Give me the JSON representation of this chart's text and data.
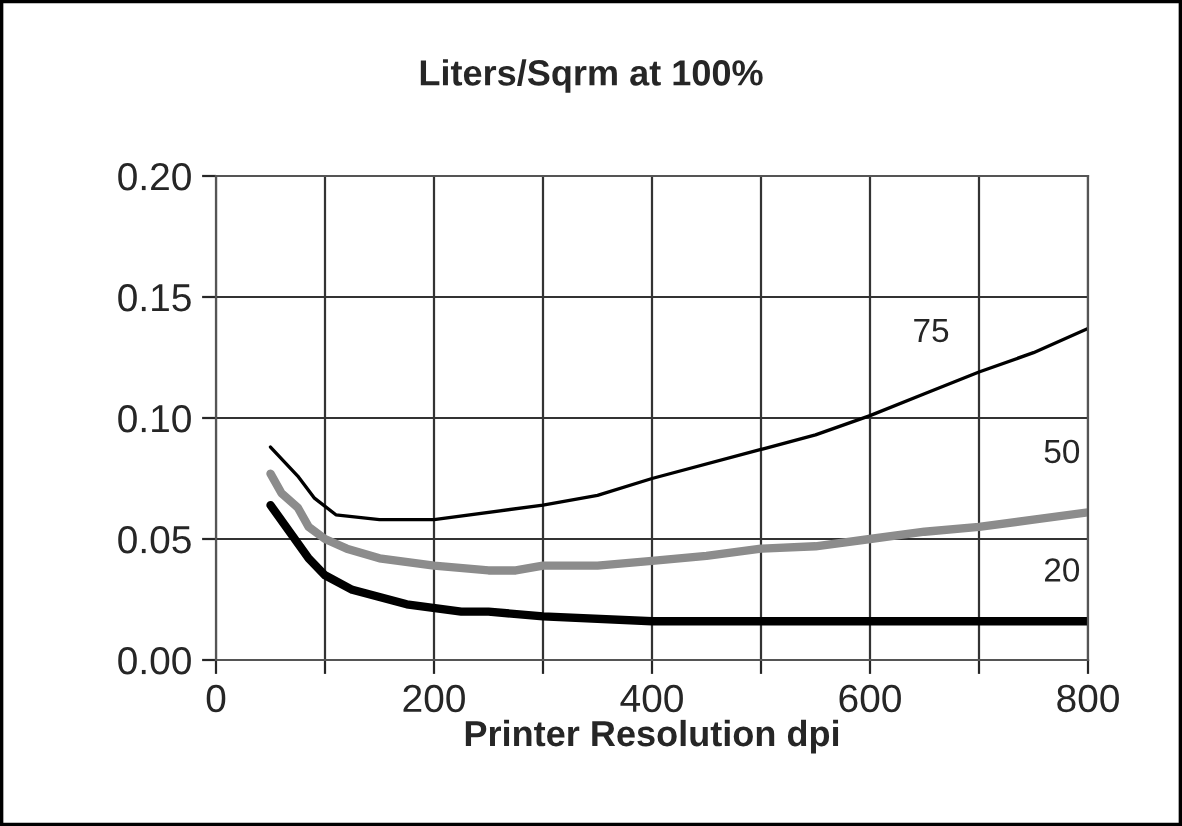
{
  "chart_data": {
    "type": "line",
    "title": "Liters/Sqrm at 100%",
    "xlabel": "Printer Resolution dpi",
    "xlim": [
      0,
      800
    ],
    "xticks": [
      0,
      {
        "value": 100,
        "label": null
      },
      200,
      {
        "value": 300,
        "label": null
      },
      400,
      {
        "value": 500,
        "label": null
      },
      600,
      {
        "value": 700,
        "label": null
      },
      800
    ],
    "ylim": [
      0,
      0.2
    ],
    "yticks": [
      {
        "value": 0,
        "label": "0.00"
      },
      {
        "value": 0.05,
        "label": "0.05"
      },
      {
        "value": 0.1,
        "label": "0.10"
      },
      {
        "value": 0.15,
        "label": "0.15"
      },
      {
        "value": 0.2,
        "label": "0.20"
      }
    ],
    "grid": true,
    "legend": false,
    "marker": "none",
    "line_style": "solid",
    "series": [
      {
        "name": "75",
        "color": "#000000",
        "x": [
          50,
          75,
          90,
          110,
          150,
          200,
          300,
          350,
          400,
          500,
          550,
          600,
          650,
          700,
          750,
          800
        ],
        "values": [
          0.088,
          0.076,
          0.067,
          0.06,
          0.058,
          0.058,
          0.064,
          0.068,
          0.075,
          0.087,
          0.093,
          0.101,
          0.11,
          0.119,
          0.127,
          0.137
        ]
      },
      {
        "name": "50",
        "color": "#8c8c8c",
        "x": [
          50,
          60,
          75,
          85,
          100,
          120,
          150,
          200,
          250,
          275,
          300,
          350,
          400,
          450,
          500,
          550,
          600,
          650,
          700,
          750,
          800
        ],
        "values": [
          0.077,
          0.069,
          0.063,
          0.055,
          0.05,
          0.046,
          0.042,
          0.039,
          0.037,
          0.037,
          0.039,
          0.039,
          0.041,
          0.043,
          0.046,
          0.047,
          0.05,
          0.053,
          0.055,
          0.058,
          0.061
        ]
      },
      {
        "name": "20",
        "color": "#000000",
        "x": [
          50,
          85,
          100,
          125,
          175,
          225,
          250,
          300,
          400,
          800
        ],
        "values": [
          0.064,
          0.042,
          0.035,
          0.029,
          0.023,
          0.02,
          0.02,
          0.018,
          0.016,
          0.016
        ]
      }
    ]
  }
}
